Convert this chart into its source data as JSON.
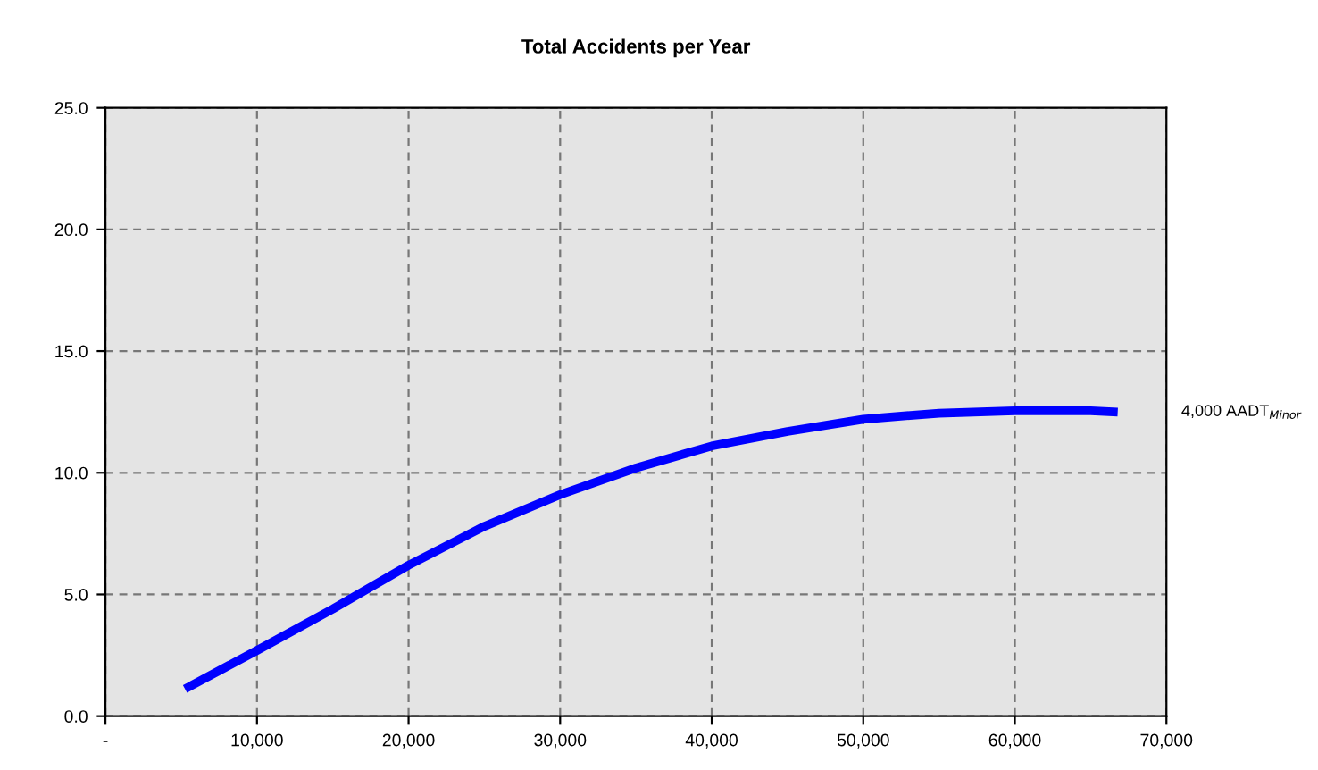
{
  "chart_data": {
    "type": "line",
    "title": "Total Accidents per Year",
    "xlim": [
      0,
      70000
    ],
    "xticks": [
      {
        "value": 0,
        "label": "-"
      },
      {
        "value": 10000,
        "label": "10,000"
      },
      {
        "value": 20000,
        "label": "20,000"
      },
      {
        "value": 30000,
        "label": "30,000"
      },
      {
        "value": 40000,
        "label": "40,000"
      },
      {
        "value": 50000,
        "label": "50,000"
      },
      {
        "value": 60000,
        "label": "60,000"
      },
      {
        "value": 70000,
        "label": "70,000"
      }
    ],
    "ylim": [
      0,
      25
    ],
    "yticks": [
      {
        "value": 0,
        "label": "0.0"
      },
      {
        "value": 5,
        "label": "5.0"
      },
      {
        "value": 10,
        "label": "10.0"
      },
      {
        "value": 15,
        "label": "15.0"
      },
      {
        "value": 20,
        "label": "20.0"
      },
      {
        "value": 25,
        "label": "25.0"
      }
    ],
    "grid": true,
    "marker": "none",
    "line_style": "solid",
    "series": [
      {
        "name": "4,000 AADT$_{Minor}$",
        "color": "#0000ff",
        "x": [
          5500,
          10000,
          15000,
          20000,
          25000,
          30000,
          35000,
          40000,
          45000,
          50000,
          55000,
          60000,
          65000,
          66500
        ],
        "values": [
          1.2,
          2.7,
          4.4,
          6.2,
          7.8,
          9.1,
          10.2,
          11.1,
          11.7,
          12.2,
          12.45,
          12.55,
          12.55,
          12.5
        ]
      }
    ]
  }
}
